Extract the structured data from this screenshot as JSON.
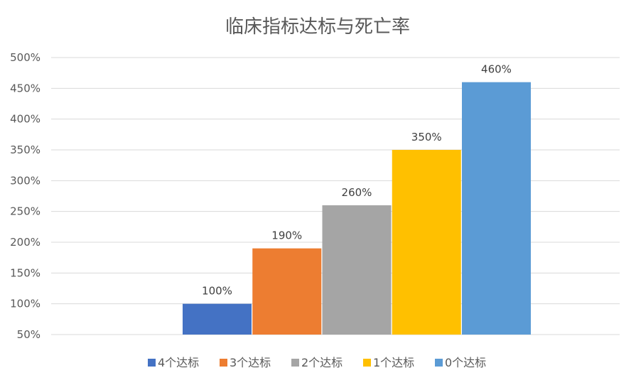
{
  "chart_data": {
    "type": "bar",
    "title": "临床指标达标与死亡率",
    "xlabel": "",
    "ylabel": "",
    "ylim": [
      50,
      500
    ],
    "yticks": [
      50,
      100,
      150,
      200,
      250,
      300,
      350,
      400,
      450,
      500
    ],
    "ytick_labels": [
      "50%",
      "100%",
      "150%",
      "200%",
      "250%",
      "300%",
      "350%",
      "400%",
      "450%",
      "500%"
    ],
    "grid": true,
    "legend_position": "bottom",
    "series": [
      {
        "name": "4个达标",
        "value": 100,
        "label": "100%",
        "color": "#4472C4"
      },
      {
        "name": "3个达标",
        "value": 190,
        "label": "190%",
        "color": "#ED7D31"
      },
      {
        "name": "2个达标",
        "value": 260,
        "label": "260%",
        "color": "#A5A5A5"
      },
      {
        "name": "1个达标",
        "value": 350,
        "label": "350%",
        "color": "#FFC000"
      },
      {
        "name": "0个达标",
        "value": 460,
        "label": "460%",
        "color": "#5B9BD5"
      }
    ]
  }
}
